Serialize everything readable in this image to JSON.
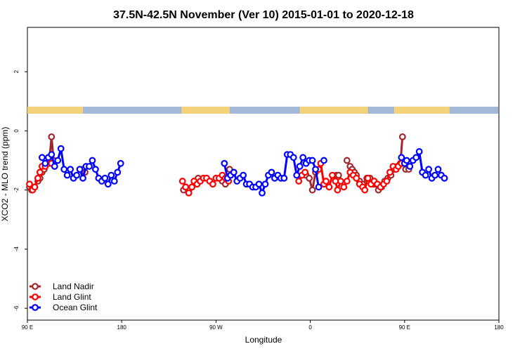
{
  "chart_data": {
    "type": "line",
    "title": "37.5N-42.5N November (Ver 10)   2015-01-01 to 2020-12-18",
    "xlabel": "Longitude",
    "ylabel": "XCO2 - MLO trend (ppm)",
    "xlim": [
      90,
      540
    ],
    "ylim": [
      -6.4,
      3.5
    ],
    "x_ticks": [
      {
        "value": 90,
        "label": "90 E"
      },
      {
        "value": 180,
        "label": "180"
      },
      {
        "value": 270,
        "label": "90 W"
      },
      {
        "value": 360,
        "label": "0"
      },
      {
        "value": 450,
        "label": "90 E"
      },
      {
        "value": 540,
        "label": "180"
      }
    ],
    "y_ticks": [
      {
        "value": 2,
        "label": "2"
      },
      {
        "value": 0,
        "label": "0"
      },
      {
        "value": -2,
        "label": "-2"
      },
      {
        "value": -4,
        "label": "-4"
      },
      {
        "value": -6,
        "label": "-6"
      }
    ],
    "land_strip_y": 0.7,
    "land_segments": [
      [
        90,
        143
      ],
      [
        237,
        283
      ],
      [
        350,
        415
      ],
      [
        440,
        493
      ]
    ],
    "legend_position": "bottom-left",
    "series": [
      {
        "name": "Land Nadir",
        "color": "#a0282d",
        "segments": [
          [
            [
              92,
              -1.9
            ],
            [
              94,
              -2.0
            ],
            [
              97,
              -1.9
            ],
            [
              100,
              -1.7
            ],
            [
              102,
              -1.6
            ],
            [
              104,
              -1.4
            ],
            [
              106,
              -1.3
            ],
            [
              108,
              -1.1
            ],
            [
              111,
              -1.0
            ],
            [
              113,
              -0.2
            ],
            [
              115,
              -1.0
            ]
          ],
          [
            [
              143,
              -1.3
            ],
            [
              145,
              -1.4
            ]
          ],
          [
            [
              239,
              -2.0
            ],
            [
              241,
              -1.9
            ],
            [
              244,
              -2.0
            ],
            [
              247,
              -1.9
            ],
            [
              250,
              -1.7
            ],
            [
              253,
              -1.6
            ]
          ],
          [
            [
              276,
              -1.7
            ],
            [
              279,
              -1.8
            ]
          ],
          [
            [
              283,
              -1.3
            ]
          ],
          [
            [
              356,
              -1.5
            ],
            [
              359,
              -1.6
            ],
            [
              362,
              -2.0
            ],
            [
              365,
              -1.4
            ]
          ],
          [
            [
              385,
              -1.5
            ],
            [
              387,
              -1.5
            ]
          ],
          [
            [
              395,
              -1.0
            ],
            [
              398,
              -1.2
            ],
            [
              400,
              -1.3
            ],
            [
              402,
              -1.4
            ],
            [
              404,
              -1.5
            ],
            [
              407,
              -1.7
            ],
            [
              410,
              -1.8
            ],
            [
              414,
              -1.6
            ],
            [
              417,
              -1.6
            ],
            [
              420,
              -1.8
            ],
            [
              422,
              -1.8
            ],
            [
              425,
              -2.0
            ],
            [
              428,
              -1.9
            ],
            [
              431,
              -1.7
            ],
            [
              434,
              -1.6
            ],
            [
              437,
              -1.5
            ],
            [
              440,
              -1.3
            ],
            [
              443,
              -1.2
            ],
            [
              446,
              -1.1
            ],
            [
              448,
              -0.2
            ]
          ],
          [
            [
              451,
              -1.3
            ],
            [
              454,
              -1.3
            ]
          ]
        ]
      },
      {
        "name": "Land Glint",
        "color": "#ff0000",
        "segments": [
          [
            [
              92,
              -1.8
            ],
            [
              95,
              -2.0
            ],
            [
              97,
              -1.9
            ],
            [
              100,
              -1.6
            ],
            [
              102,
              -1.4
            ],
            [
              104,
              -1.2
            ],
            [
              107,
              -1.2
            ],
            [
              110,
              -1.1
            ],
            [
              113,
              -1.1
            ]
          ],
          [
            [
              238,
              -1.7
            ],
            [
              241,
              -1.9
            ],
            [
              244,
              -2.1
            ],
            [
              247,
              -1.9
            ],
            [
              249,
              -1.7
            ],
            [
              252,
              -1.8
            ],
            [
              255,
              -1.7
            ],
            [
              258,
              -1.6
            ],
            [
              261,
              -1.6
            ],
            [
              264,
              -1.7
            ],
            [
              267,
              -1.8
            ],
            [
              270,
              -1.6
            ],
            [
              273,
              -1.6
            ],
            [
              276,
              -1.5
            ],
            [
              279,
              -1.6
            ],
            [
              282,
              -1.7
            ]
          ],
          [
            [
              349,
              -1.7
            ],
            [
              352,
              -1.5
            ],
            [
              355,
              -1.4
            ]
          ],
          [
            [
              368,
              -1.3
            ],
            [
              370,
              -1.1
            ],
            [
              373,
              -1.8
            ],
            [
              375,
              -1.7
            ],
            [
              378,
              -1.9
            ],
            [
              381,
              -1.5
            ],
            [
              384,
              -1.7
            ],
            [
              386,
              -2.0
            ],
            [
              389,
              -1.7
            ],
            [
              392,
              -1.9
            ],
            [
              395,
              -1.7
            ],
            [
              398,
              -1.4
            ],
            [
              401,
              -1.5
            ],
            [
              404,
              -1.6
            ],
            [
              407,
              -1.8
            ],
            [
              410,
              -1.9
            ],
            [
              412,
              -2.0
            ],
            [
              415,
              -1.6
            ],
            [
              418,
              -1.8
            ],
            [
              421,
              -1.7
            ],
            [
              424,
              -1.8
            ],
            [
              427,
              -1.9
            ],
            [
              430,
              -1.8
            ],
            [
              433,
              -1.7
            ],
            [
              436,
              -1.4
            ],
            [
              439,
              -1.2
            ],
            [
              442,
              -1.3
            ],
            [
              444,
              -1.2
            ],
            [
              447,
              -1.1
            ]
          ]
        ]
      },
      {
        "name": "Ocean Glint",
        "color": "#0000ff",
        "segments": [
          [
            [
              104,
              -0.9
            ],
            [
              107,
              -1.1
            ],
            [
              110,
              -0.9
            ],
            [
              113,
              -0.8
            ],
            [
              116,
              -1.2
            ],
            [
              119,
              -1.0
            ],
            [
              122,
              -0.6
            ],
            [
              125,
              -1.3
            ],
            [
              128,
              -1.5
            ],
            [
              131,
              -1.3
            ],
            [
              134,
              -1.6
            ],
            [
              137,
              -1.5
            ],
            [
              140,
              -1.3
            ],
            [
              143,
              -1.6
            ],
            [
              146,
              -1.2
            ],
            [
              149,
              -1.2
            ],
            [
              152,
              -1.0
            ],
            [
              155,
              -1.3
            ],
            [
              158,
              -1.6
            ],
            [
              161,
              -1.7
            ],
            [
              164,
              -1.6
            ],
            [
              167,
              -1.8
            ],
            [
              170,
              -1.5
            ],
            [
              173,
              -1.7
            ],
            [
              176,
              -1.4
            ],
            [
              179,
              -1.1
            ]
          ],
          [
            [
              278,
              -1.1
            ],
            [
              281,
              -1.6
            ],
            [
              284,
              -1.5
            ],
            [
              287,
              -1.4
            ],
            [
              290,
              -1.7
            ],
            [
              293,
              -1.6
            ],
            [
              296,
              -1.5
            ],
            [
              299,
              -1.8
            ],
            [
              302,
              -1.8
            ],
            [
              305,
              -1.9
            ],
            [
              308,
              -1.9
            ],
            [
              311,
              -1.8
            ],
            [
              314,
              -2.1
            ],
            [
              317,
              -1.8
            ],
            [
              320,
              -1.5
            ],
            [
              323,
              -1.4
            ],
            [
              326,
              -1.6
            ],
            [
              329,
              -1.5
            ],
            [
              332,
              -1.6
            ],
            [
              335,
              -1.6
            ],
            [
              338,
              -0.8
            ],
            [
              341,
              -0.8
            ],
            [
              344,
              -0.9
            ],
            [
              347,
              -1.5
            ],
            [
              350,
              -1.2
            ],
            [
              353,
              -0.9
            ],
            [
              356,
              -1.1
            ],
            [
              359,
              -1.0
            ],
            [
              362,
              -1.0
            ],
            [
              365,
              -1.3
            ],
            [
              368,
              -1.9
            ]
          ],
          [
            [
              373,
              -1.0
            ]
          ],
          [
            [
              447,
              -0.9
            ],
            [
              450,
              -1.1
            ],
            [
              452,
              -1.0
            ],
            [
              455,
              -1.2
            ],
            [
              458,
              -1.0
            ],
            [
              461,
              -0.9
            ],
            [
              464,
              -0.7
            ],
            [
              467,
              -1.4
            ],
            [
              470,
              -1.5
            ],
            [
              473,
              -1.3
            ],
            [
              476,
              -1.6
            ],
            [
              479,
              -1.5
            ],
            [
              482,
              -1.3
            ],
            [
              485,
              -1.5
            ],
            [
              488,
              -1.6
            ]
          ]
        ]
      }
    ]
  }
}
